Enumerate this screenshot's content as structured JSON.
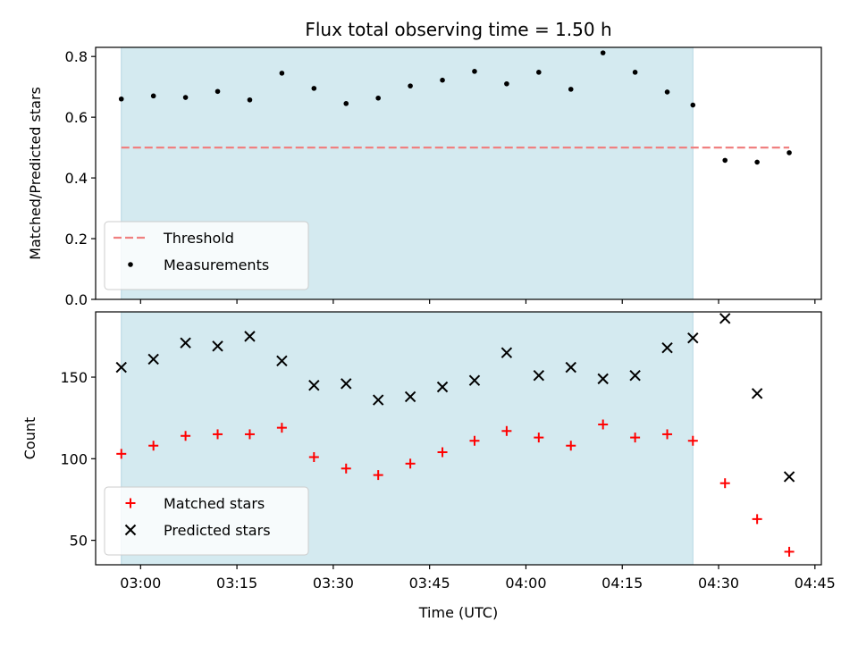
{
  "figure": {
    "title": "Flux total observing time = 1.50 h",
    "xlabel": "Time (UTC)"
  },
  "chart_data": [
    {
      "type": "scatter",
      "ylabel": "Matched/Predicted stars",
      "xlim": [
        "02:53",
        "04:46"
      ],
      "ylim": [
        0,
        0.83
      ],
      "yticks": [
        0.0,
        0.2,
        0.4,
        0.6,
        0.8
      ],
      "ytick_labels": [
        "0.0",
        "0.2",
        "0.4",
        "0.6",
        "0.8"
      ],
      "grid": false,
      "legend_position": "lower-left",
      "shaded_interval": {
        "x0": "02:57",
        "x1": "04:26",
        "color": "#d4eaf0"
      },
      "threshold": {
        "name": "Threshold",
        "y": 0.5,
        "x0": "02:57",
        "x1": "04:41",
        "color": "#f08080",
        "style": "dashed"
      },
      "series": [
        {
          "name": "Measurements",
          "marker": "dot",
          "color": "#000000",
          "points": [
            {
              "x": "02:57",
              "y": 0.66
            },
            {
              "x": "03:02",
              "y": 0.67
            },
            {
              "x": "03:07",
              "y": 0.665
            },
            {
              "x": "03:12",
              "y": 0.685
            },
            {
              "x": "03:17",
              "y": 0.657
            },
            {
              "x": "03:22",
              "y": 0.745
            },
            {
              "x": "03:27",
              "y": 0.695
            },
            {
              "x": "03:32",
              "y": 0.645
            },
            {
              "x": "03:37",
              "y": 0.663
            },
            {
              "x": "03:42",
              "y": 0.703
            },
            {
              "x": "03:47",
              "y": 0.722
            },
            {
              "x": "03:52",
              "y": 0.751
            },
            {
              "x": "03:57",
              "y": 0.71
            },
            {
              "x": "04:02",
              "y": 0.748
            },
            {
              "x": "04:07",
              "y": 0.692
            },
            {
              "x": "04:12",
              "y": 0.812
            },
            {
              "x": "04:17",
              "y": 0.748
            },
            {
              "x": "04:22",
              "y": 0.683
            },
            {
              "x": "04:26",
              "y": 0.64
            },
            {
              "x": "04:31",
              "y": 0.458
            },
            {
              "x": "04:36",
              "y": 0.452
            },
            {
              "x": "04:41",
              "y": 0.483
            }
          ]
        }
      ]
    },
    {
      "type": "scatter",
      "ylabel": "Count",
      "xlim": [
        "02:53",
        "04:46"
      ],
      "ylim": [
        35,
        190
      ],
      "yticks": [
        50,
        100,
        150
      ],
      "ytick_labels": [
        "50",
        "100",
        "150"
      ],
      "xticks": [
        "03:00",
        "03:15",
        "03:30",
        "03:45",
        "04:00",
        "04:15",
        "04:30",
        "04:45"
      ],
      "xtick_labels": [
        "03:00",
        "03:15",
        "03:30",
        "03:45",
        "04:00",
        "04:15",
        "04:30",
        "04:45"
      ],
      "grid": false,
      "legend_position": "lower-left",
      "shaded_interval": {
        "x0": "02:57",
        "x1": "04:26",
        "color": "#d4eaf0"
      },
      "series": [
        {
          "name": "Matched stars",
          "marker": "plus",
          "color": "#ff0000",
          "points": [
            {
              "x": "02:57",
              "y": 103
            },
            {
              "x": "03:02",
              "y": 108
            },
            {
              "x": "03:07",
              "y": 114
            },
            {
              "x": "03:12",
              "y": 115
            },
            {
              "x": "03:17",
              "y": 115
            },
            {
              "x": "03:22",
              "y": 119
            },
            {
              "x": "03:27",
              "y": 101
            },
            {
              "x": "03:32",
              "y": 94
            },
            {
              "x": "03:37",
              "y": 90
            },
            {
              "x": "03:42",
              "y": 97
            },
            {
              "x": "03:47",
              "y": 104
            },
            {
              "x": "03:52",
              "y": 111
            },
            {
              "x": "03:57",
              "y": 117
            },
            {
              "x": "04:02",
              "y": 113
            },
            {
              "x": "04:07",
              "y": 108
            },
            {
              "x": "04:12",
              "y": 121
            },
            {
              "x": "04:17",
              "y": 113
            },
            {
              "x": "04:22",
              "y": 115
            },
            {
              "x": "04:26",
              "y": 111
            },
            {
              "x": "04:31",
              "y": 85
            },
            {
              "x": "04:36",
              "y": 63
            },
            {
              "x": "04:41",
              "y": 43
            }
          ]
        },
        {
          "name": "Predicted stars",
          "marker": "x",
          "color": "#000000",
          "points": [
            {
              "x": "02:57",
              "y": 156
            },
            {
              "x": "03:02",
              "y": 161
            },
            {
              "x": "03:07",
              "y": 171
            },
            {
              "x": "03:12",
              "y": 169
            },
            {
              "x": "03:17",
              "y": 175
            },
            {
              "x": "03:22",
              "y": 160
            },
            {
              "x": "03:27",
              "y": 145
            },
            {
              "x": "03:32",
              "y": 146
            },
            {
              "x": "03:37",
              "y": 136
            },
            {
              "x": "03:42",
              "y": 138
            },
            {
              "x": "03:47",
              "y": 144
            },
            {
              "x": "03:52",
              "y": 148
            },
            {
              "x": "03:57",
              "y": 165
            },
            {
              "x": "04:02",
              "y": 151
            },
            {
              "x": "04:07",
              "y": 156
            },
            {
              "x": "04:12",
              "y": 149
            },
            {
              "x": "04:17",
              "y": 151
            },
            {
              "x": "04:22",
              "y": 168
            },
            {
              "x": "04:26",
              "y": 174
            },
            {
              "x": "04:31",
              "y": 186
            },
            {
              "x": "04:36",
              "y": 140
            },
            {
              "x": "04:41",
              "y": 89
            }
          ]
        }
      ]
    }
  ]
}
